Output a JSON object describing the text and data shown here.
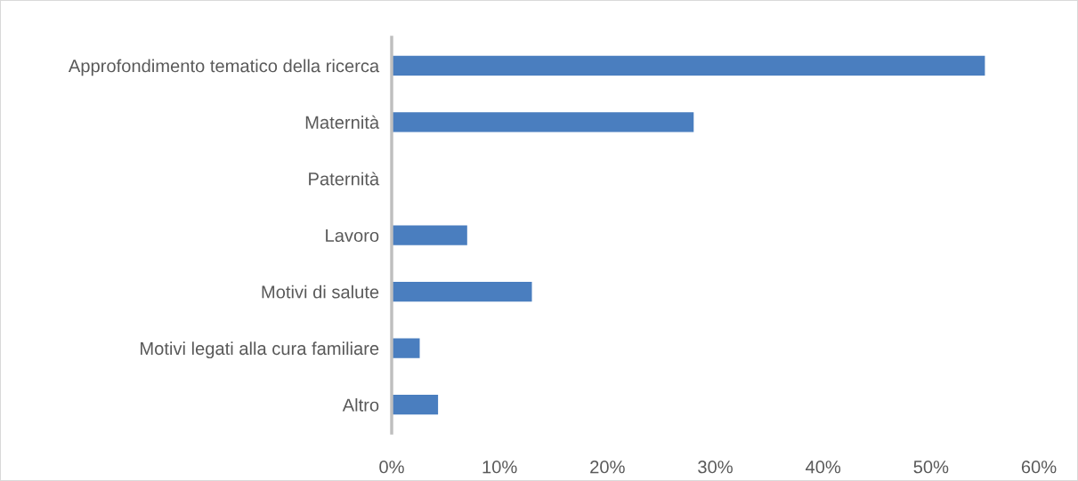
{
  "chart_data": {
    "type": "bar",
    "orientation": "horizontal",
    "categories": [
      "Approfondimento tematico della ricerca",
      "Maternità",
      "Paternità",
      "Lavoro",
      "Motivi di salute",
      "Motivi legati alla cura familiare",
      "Altro"
    ],
    "values": [
      55,
      28,
      0,
      7,
      13,
      2.6,
      4.3
    ],
    "color": "#4a7ebf",
    "xlim": [
      0,
      60
    ],
    "xticks": [
      {
        "value": 0,
        "label": "0%"
      },
      {
        "value": 10,
        "label": "10%"
      },
      {
        "value": 20,
        "label": "20%"
      },
      {
        "value": 30,
        "label": "30%"
      },
      {
        "value": 40,
        "label": "40%"
      },
      {
        "value": 50,
        "label": "50%"
      },
      {
        "value": 60,
        "label": "60%"
      }
    ],
    "grid": false,
    "legend": false
  }
}
